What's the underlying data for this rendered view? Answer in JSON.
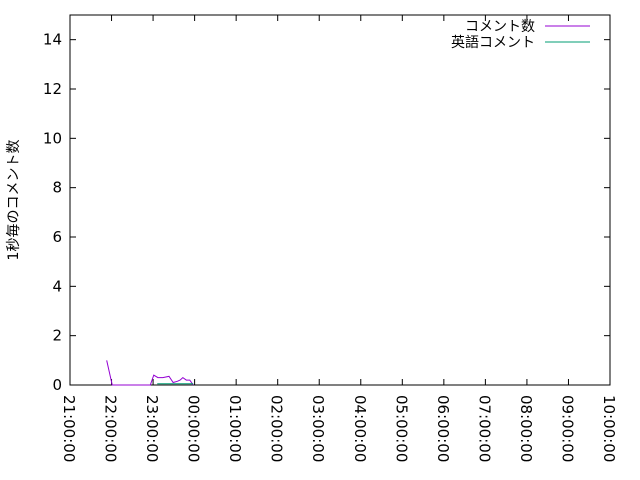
{
  "chart_data": {
    "type": "line",
    "title": "",
    "xlabel": "",
    "ylabel": "1秒毎のコメント数",
    "xlim": [
      "21:00:00",
      "10:00:00"
    ],
    "ylim": [
      0,
      15
    ],
    "x_ticks": [
      "21:00:00",
      "22:00:00",
      "23:00:00",
      "00:00:00",
      "01:00:00",
      "02:00:00",
      "03:00:00",
      "04:00:00",
      "05:00:00",
      "06:00:00",
      "07:00:00",
      "08:00:00",
      "09:00:00",
      "10:00:00"
    ],
    "y_ticks": [
      0,
      2,
      4,
      6,
      8,
      10,
      12,
      14
    ],
    "grid": false,
    "legend": "top-right",
    "series": [
      {
        "name": "コメント数",
        "color": "#9400d3",
        "points": [
          [
            "21:53",
            1.0
          ],
          [
            "22:01",
            0
          ],
          [
            "22:56",
            0
          ],
          [
            "23:01",
            0.4
          ],
          [
            "23:07",
            0.3
          ],
          [
            "23:14",
            0.3
          ],
          [
            "23:23",
            0.35
          ],
          [
            "23:29",
            0.1
          ],
          [
            "23:35",
            0.15
          ],
          [
            "23:39",
            0.2
          ],
          [
            "23:43",
            0.3
          ],
          [
            "23:48",
            0.2
          ],
          [
            "23:53",
            0.2
          ],
          [
            "23:58",
            0
          ]
        ]
      },
      {
        "name": "英語コメント",
        "color": "#009e73",
        "points": [
          [
            "23:06",
            0.05
          ],
          [
            "23:13",
            0.05
          ],
          [
            "23:52",
            0.05
          ],
          [
            "23:58",
            0.05
          ]
        ]
      }
    ]
  }
}
